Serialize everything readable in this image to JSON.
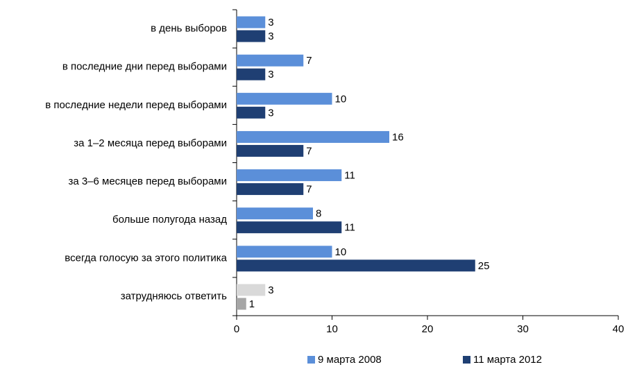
{
  "chart_data": {
    "type": "bar",
    "orientation": "horizontal",
    "categories": [
      "в день выборов",
      "в последние дни перед выборами",
      "в последние недели перед выборами",
      "за 1–2 месяца перед выборами",
      "за 3–6 месяцев перед выборами",
      "больше полугода назад",
      "всегда голосую за этого политика",
      "затрудняюсь ответить"
    ],
    "series": [
      {
        "name": "9 марта 2008",
        "color": "#5b8fd9",
        "colors": [
          "#5b8fd9",
          "#5b8fd9",
          "#5b8fd9",
          "#5b8fd9",
          "#5b8fd9",
          "#5b8fd9",
          "#5b8fd9",
          "#d9d9d9"
        ],
        "values": [
          3,
          7,
          10,
          16,
          11,
          8,
          10,
          3
        ]
      },
      {
        "name": "11 марта 2012",
        "color": "#1f3f73",
        "colors": [
          "#1f3f73",
          "#1f3f73",
          "#1f3f73",
          "#1f3f73",
          "#1f3f73",
          "#1f3f73",
          "#1f3f73",
          "#a6a6a6"
        ],
        "values": [
          3,
          3,
          3,
          7,
          7,
          11,
          25,
          1
        ]
      }
    ],
    "xlim": [
      0,
      40
    ],
    "xticks": [
      0,
      10,
      20,
      30,
      40
    ],
    "grid": false,
    "legend": "bottom"
  }
}
